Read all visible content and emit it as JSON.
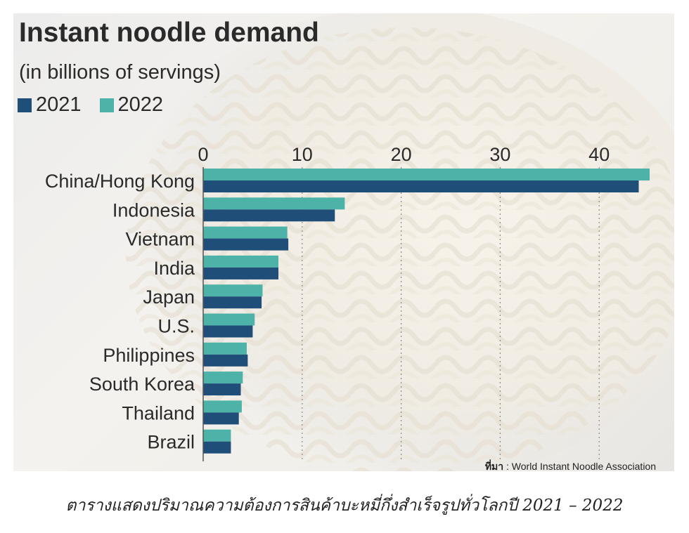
{
  "chart_data": {
    "type": "bar",
    "orientation": "horizontal",
    "title": "Instant noodle demand",
    "subtitle": "(in billions of servings)",
    "categories": [
      "China/Hong Kong",
      "Indonesia",
      "Vietnam",
      "India",
      "Japan",
      "U.S.",
      "Philippines",
      "South Korea",
      "Thailand",
      "Brazil"
    ],
    "series": [
      {
        "name": "2022",
        "color": "#4db3a9",
        "values": [
          45.1,
          14.3,
          8.5,
          7.6,
          6.0,
          5.2,
          4.4,
          4.0,
          3.9,
          2.8
        ]
      },
      {
        "name": "2021",
        "color": "#1f4e79",
        "values": [
          44.0,
          13.3,
          8.6,
          7.6,
          5.9,
          5.0,
          4.5,
          3.8,
          3.6,
          2.8
        ]
      }
    ],
    "legend_order": [
      "2021",
      "2022"
    ],
    "xlim": [
      0,
      45
    ],
    "xticks": [
      0,
      10,
      20,
      30,
      40
    ],
    "grid": true,
    "legend_position": "top-left"
  },
  "source": {
    "label": "ที่มา",
    "text": ": World Instant Noodle Association"
  },
  "caption": "ตารางแสดงปริมาณความต้องการสินค้าบะหมี่กึ่งสำเร็จรูปทั่วโลกปี 2021 – 2022"
}
